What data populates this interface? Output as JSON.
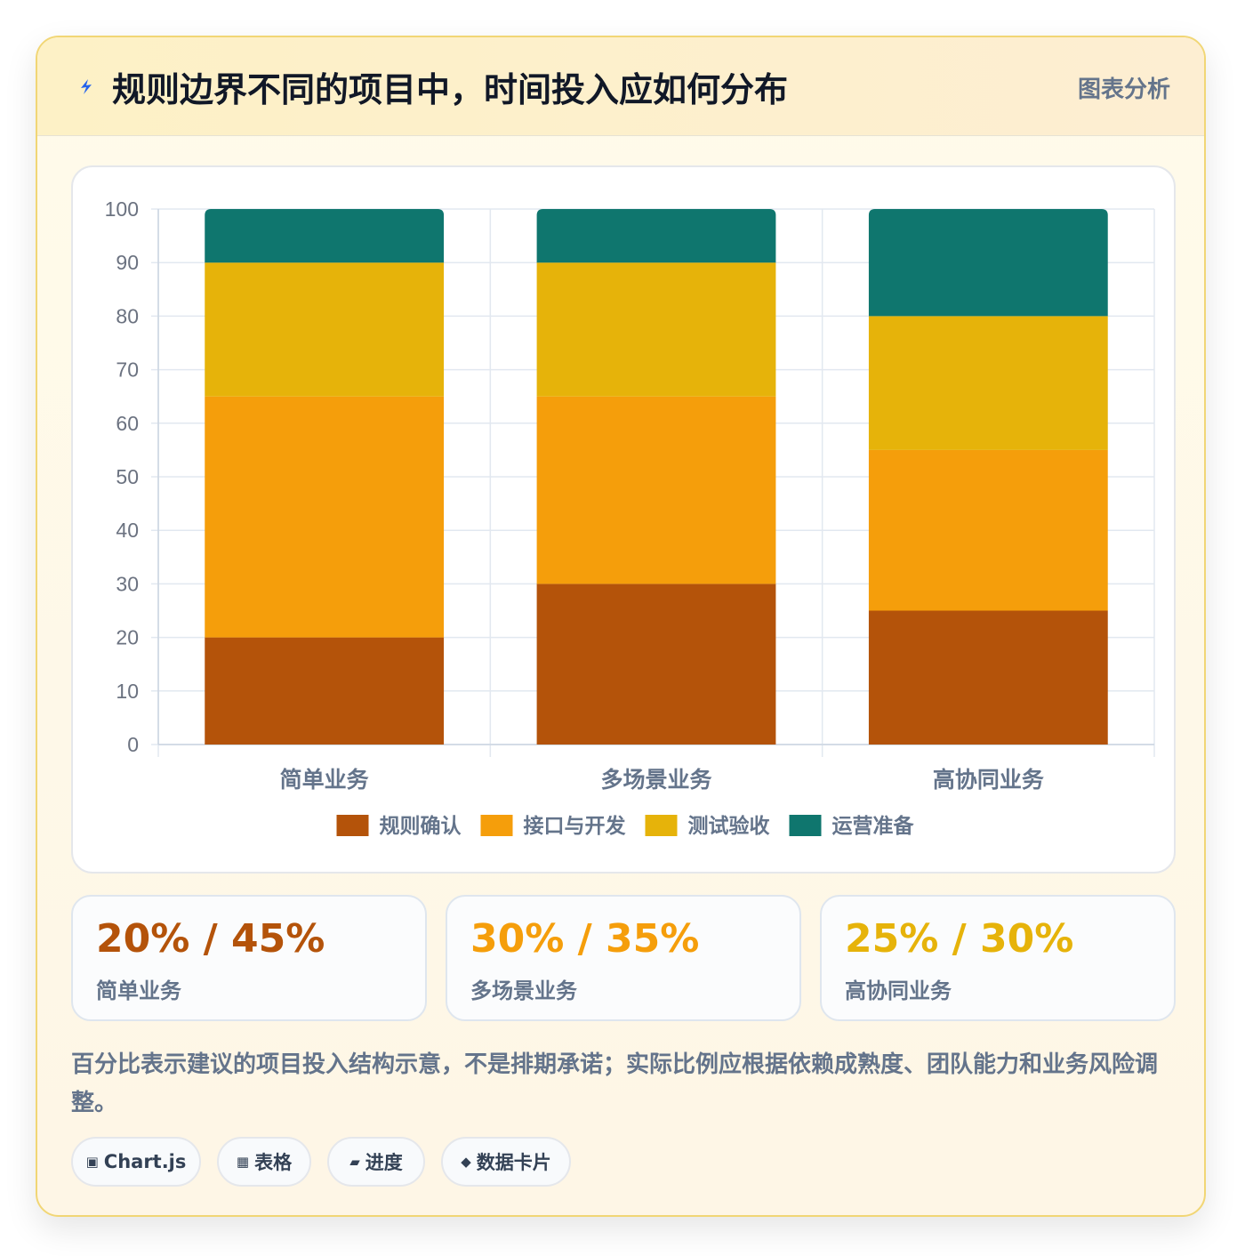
{
  "header": {
    "title": "规则边界不同的项目中，时间投入应如何分布",
    "tag": "图表分析",
    "icon": "lightning-icon"
  },
  "chart_data": {
    "type": "bar",
    "stacked": true,
    "categories": [
      "简单业务",
      "多场景业务",
      "高协同业务"
    ],
    "series": [
      {
        "name": "规则确认",
        "values": [
          20,
          30,
          25
        ],
        "color": "#b4530a"
      },
      {
        "name": "接口与开发",
        "values": [
          45,
          35,
          30
        ],
        "color": "#f59e0b"
      },
      {
        "name": "测试验收",
        "values": [
          25,
          25,
          25
        ],
        "color": "#e6b30a"
      },
      {
        "name": "运营准备",
        "values": [
          10,
          10,
          20
        ],
        "color": "#0f766e"
      }
    ],
    "ylim": [
      0,
      100
    ],
    "yticks": [
      "0",
      "10",
      "20",
      "30",
      "40",
      "50",
      "60",
      "70",
      "80",
      "90",
      "100"
    ],
    "grid": true,
    "legend": "bottom"
  },
  "stats": [
    {
      "value": "20% / 45%",
      "label": "简单业务",
      "color": "#b4530a"
    },
    {
      "value": "30% / 35%",
      "label": "多场景业务",
      "color": "#f59e0b"
    },
    {
      "value": "25% / 30%",
      "label": "高协同业务",
      "color": "#e6b30a"
    }
  ],
  "note": "百分比表示建议的项目投入结构示意，不是排期承诺；实际比例应根据依赖成熟度、团队能力和业务风险调整。",
  "chips": [
    {
      "icon": "▣",
      "label": "Chart.js"
    },
    {
      "icon": "▦",
      "label": "表格"
    },
    {
      "icon": "▰",
      "label": "进度"
    },
    {
      "icon": "◆",
      "label": "数据卡片"
    }
  ]
}
